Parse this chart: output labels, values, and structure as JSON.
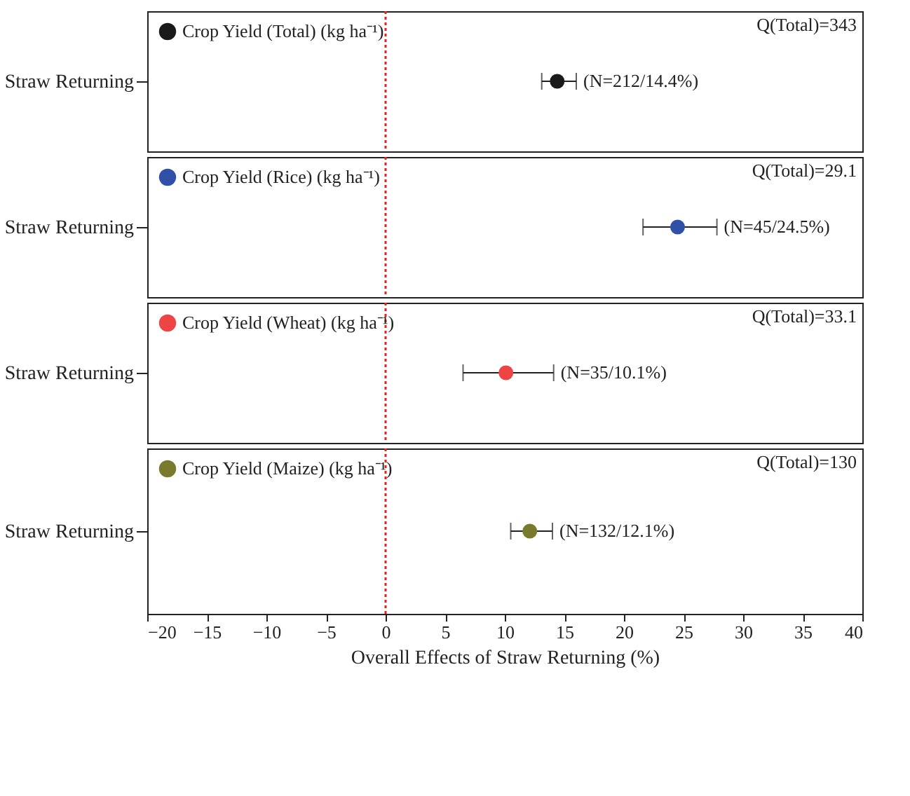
{
  "chart_data": [
    {
      "type": "scatter",
      "orientation": "horizontal",
      "categories": [
        "Straw Returning"
      ],
      "series": [
        {
          "name": "Crop Yield (Total) (kg ha⁻¹)",
          "color": "#1a1a1a",
          "values": [
            14.4
          ],
          "errors": [
            [
              13.1,
              16.0
            ]
          ],
          "value_labels": [
            "(N=212/14.4%)"
          ]
        }
      ],
      "annotations": [
        "Q(Total)=343"
      ],
      "xlim": [
        -20,
        40
      ],
      "ref_lines": [
        {
          "axis": "x",
          "value": 0,
          "color": "#e8201e",
          "line_style": "dotted"
        }
      ],
      "legend": "top left",
      "marker": "circle",
      "grid": false,
      "tick_labels": "y"
    },
    {
      "type": "scatter",
      "orientation": "horizontal",
      "categories": [
        "Straw Returning"
      ],
      "series": [
        {
          "name": "Crop Yield (Rice) (kg ha⁻¹)",
          "color": "#3050a8",
          "values": [
            24.5
          ],
          "errors": [
            [
              21.6,
              27.8
            ]
          ],
          "value_labels": [
            "(N=45/24.5%)"
          ]
        }
      ],
      "annotations": [
        "Q(Total)=29.1"
      ],
      "xlim": [
        -20,
        40
      ],
      "ref_lines": [
        {
          "axis": "x",
          "value": 0,
          "color": "#e8201e",
          "line_style": "dotted"
        }
      ],
      "legend": "top left",
      "marker": "circle",
      "grid": false,
      "tick_labels": "y"
    },
    {
      "type": "scatter",
      "orientation": "horizontal",
      "categories": [
        "Straw Returning"
      ],
      "series": [
        {
          "name": "Crop Yield (Wheat) (kg ha⁻¹)",
          "color": "#ee4444",
          "values": [
            10.1
          ],
          "errors": [
            [
              6.5,
              14.1
            ]
          ],
          "value_labels": [
            "(N=35/10.1%)"
          ]
        }
      ],
      "annotations": [
        "Q(Total)=33.1"
      ],
      "xlim": [
        -20,
        40
      ],
      "ref_lines": [
        {
          "axis": "x",
          "value": 0,
          "color": "#e8201e",
          "line_style": "dotted"
        }
      ],
      "legend": "top left",
      "marker": "circle",
      "grid": false,
      "tick_labels": "y"
    },
    {
      "type": "scatter",
      "orientation": "horizontal",
      "categories": [
        "Straw Returning"
      ],
      "series": [
        {
          "name": "Crop Yield (Maize) (kg ha⁻¹)",
          "color": "#7a7a2e",
          "values": [
            12.1
          ],
          "errors": [
            [
              10.5,
              14.0
            ]
          ],
          "value_labels": [
            "(N=132/12.1%)"
          ]
        }
      ],
      "annotations": [
        "Q(Total)=130"
      ],
      "xlim": [
        -20,
        40
      ],
      "xticks": [
        -20,
        -15,
        -10,
        -5,
        0,
        5,
        10,
        15,
        20,
        25,
        30,
        35,
        40
      ],
      "xlabel": "Overall Effects of Straw Returning (%)",
      "ref_lines": [
        {
          "axis": "x",
          "value": 0,
          "color": "#e8201e",
          "line_style": "dotted"
        }
      ],
      "legend": "top left",
      "marker": "circle",
      "grid": false
    }
  ]
}
